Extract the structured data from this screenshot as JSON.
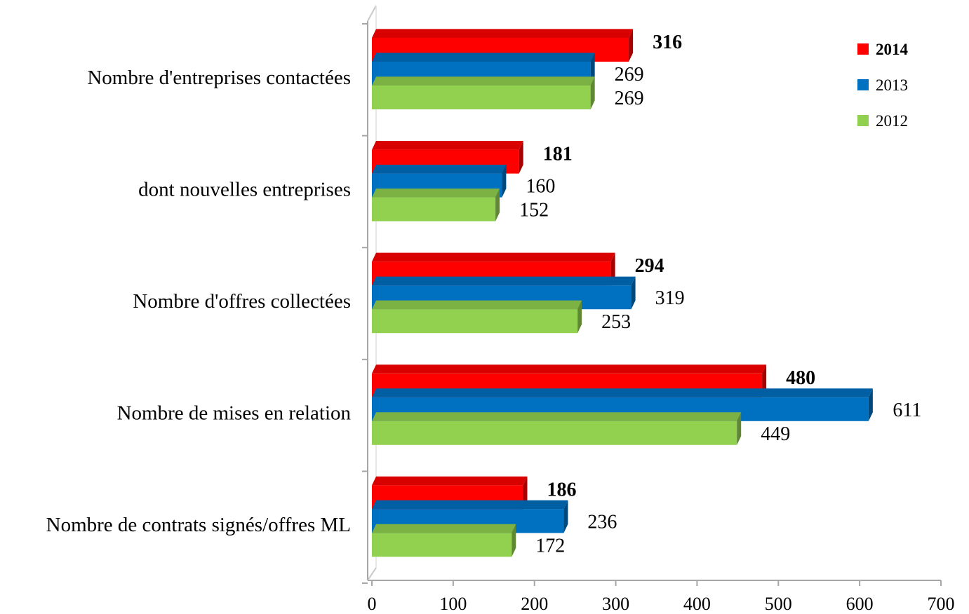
{
  "chart_data": {
    "type": "bar",
    "orientation": "horizontal",
    "categories": [
      "Nombre d'entreprises contactées",
      "dont nouvelles entreprises",
      "Nombre d'offres collectées",
      "Nombre de mises en relation",
      "Nombre de contrats signés/offres ML"
    ],
    "series": [
      {
        "name": "2014",
        "color": "#ff0000",
        "bold": true,
        "values": [
          316,
          181,
          294,
          480,
          186
        ]
      },
      {
        "name": "2013",
        "color": "#0070c0",
        "bold": false,
        "values": [
          269,
          160,
          319,
          611,
          236
        ]
      },
      {
        "name": "2012",
        "color": "#92d050",
        "bold": false,
        "values": [
          269,
          152,
          253,
          449,
          172
        ]
      }
    ],
    "data_labels": [
      [
        "316",
        "181",
        "294",
        "480",
        "186"
      ],
      [
        "269",
        "160",
        "319",
        "611",
        "236"
      ],
      [
        "269",
        "152",
        "253",
        "449",
        "172"
      ]
    ],
    "xlim": [
      0,
      700
    ],
    "xticks": [
      "0",
      "100",
      "200",
      "300",
      "400",
      "500",
      "600",
      "700"
    ],
    "title": "",
    "xlabel": "",
    "ylabel": "",
    "legend_position": "top-right",
    "grid": false,
    "style": "3d"
  }
}
